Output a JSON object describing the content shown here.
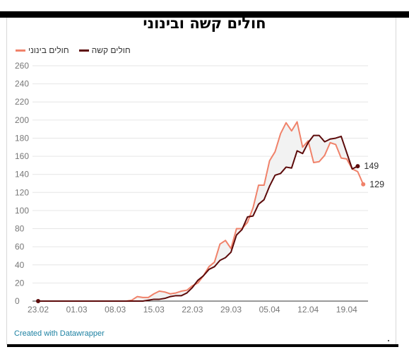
{
  "title": "חולים קשה ובינוני",
  "credit": "Created with Datawrapper",
  "chart_data": {
    "type": "line",
    "title": "חולים קשה ובינוני",
    "ylim": [
      0,
      260
    ],
    "yticks": [
      0,
      20,
      40,
      60,
      80,
      100,
      120,
      140,
      160,
      180,
      200,
      220,
      240,
      260
    ],
    "xticks": [
      "23.02",
      "01.03",
      "08.03",
      "15.03",
      "22.03",
      "29.03",
      "05.04",
      "12.04",
      "19.04"
    ],
    "grid": "horizontal",
    "legend": "top-left",
    "series": [
      {
        "name": "חולים בינוני",
        "color": "#f0826a",
        "end_label": "129",
        "values": [
          0,
          0,
          0,
          0,
          0,
          0,
          0,
          0,
          0,
          0,
          0,
          0,
          0,
          0,
          0,
          0,
          0,
          1,
          5,
          4,
          4,
          8,
          11,
          10,
          8,
          9,
          11,
          12,
          17,
          20,
          28,
          38,
          43,
          63,
          67,
          58,
          80,
          80,
          87,
          103,
          128,
          128,
          155,
          165,
          185,
          197,
          188,
          198,
          170,
          177,
          153,
          154,
          161,
          175,
          173,
          158,
          157,
          146,
          143,
          129
        ]
      },
      {
        "name": "חולים קשה",
        "color": "#5c0a0a",
        "end_label": "149",
        "values": [
          0,
          0,
          0,
          0,
          0,
          0,
          0,
          0,
          0,
          0,
          0,
          0,
          0,
          0,
          0,
          0,
          0,
          0,
          0,
          0,
          1,
          2,
          2,
          3,
          5,
          6,
          6,
          9,
          15,
          23,
          28,
          35,
          38,
          45,
          48,
          54,
          73,
          79,
          93,
          94,
          107,
          112,
          127,
          139,
          141,
          148,
          147,
          166,
          163,
          175,
          183,
          183,
          176,
          179,
          180,
          182,
          164,
          146,
          149
        ]
      }
    ]
  }
}
